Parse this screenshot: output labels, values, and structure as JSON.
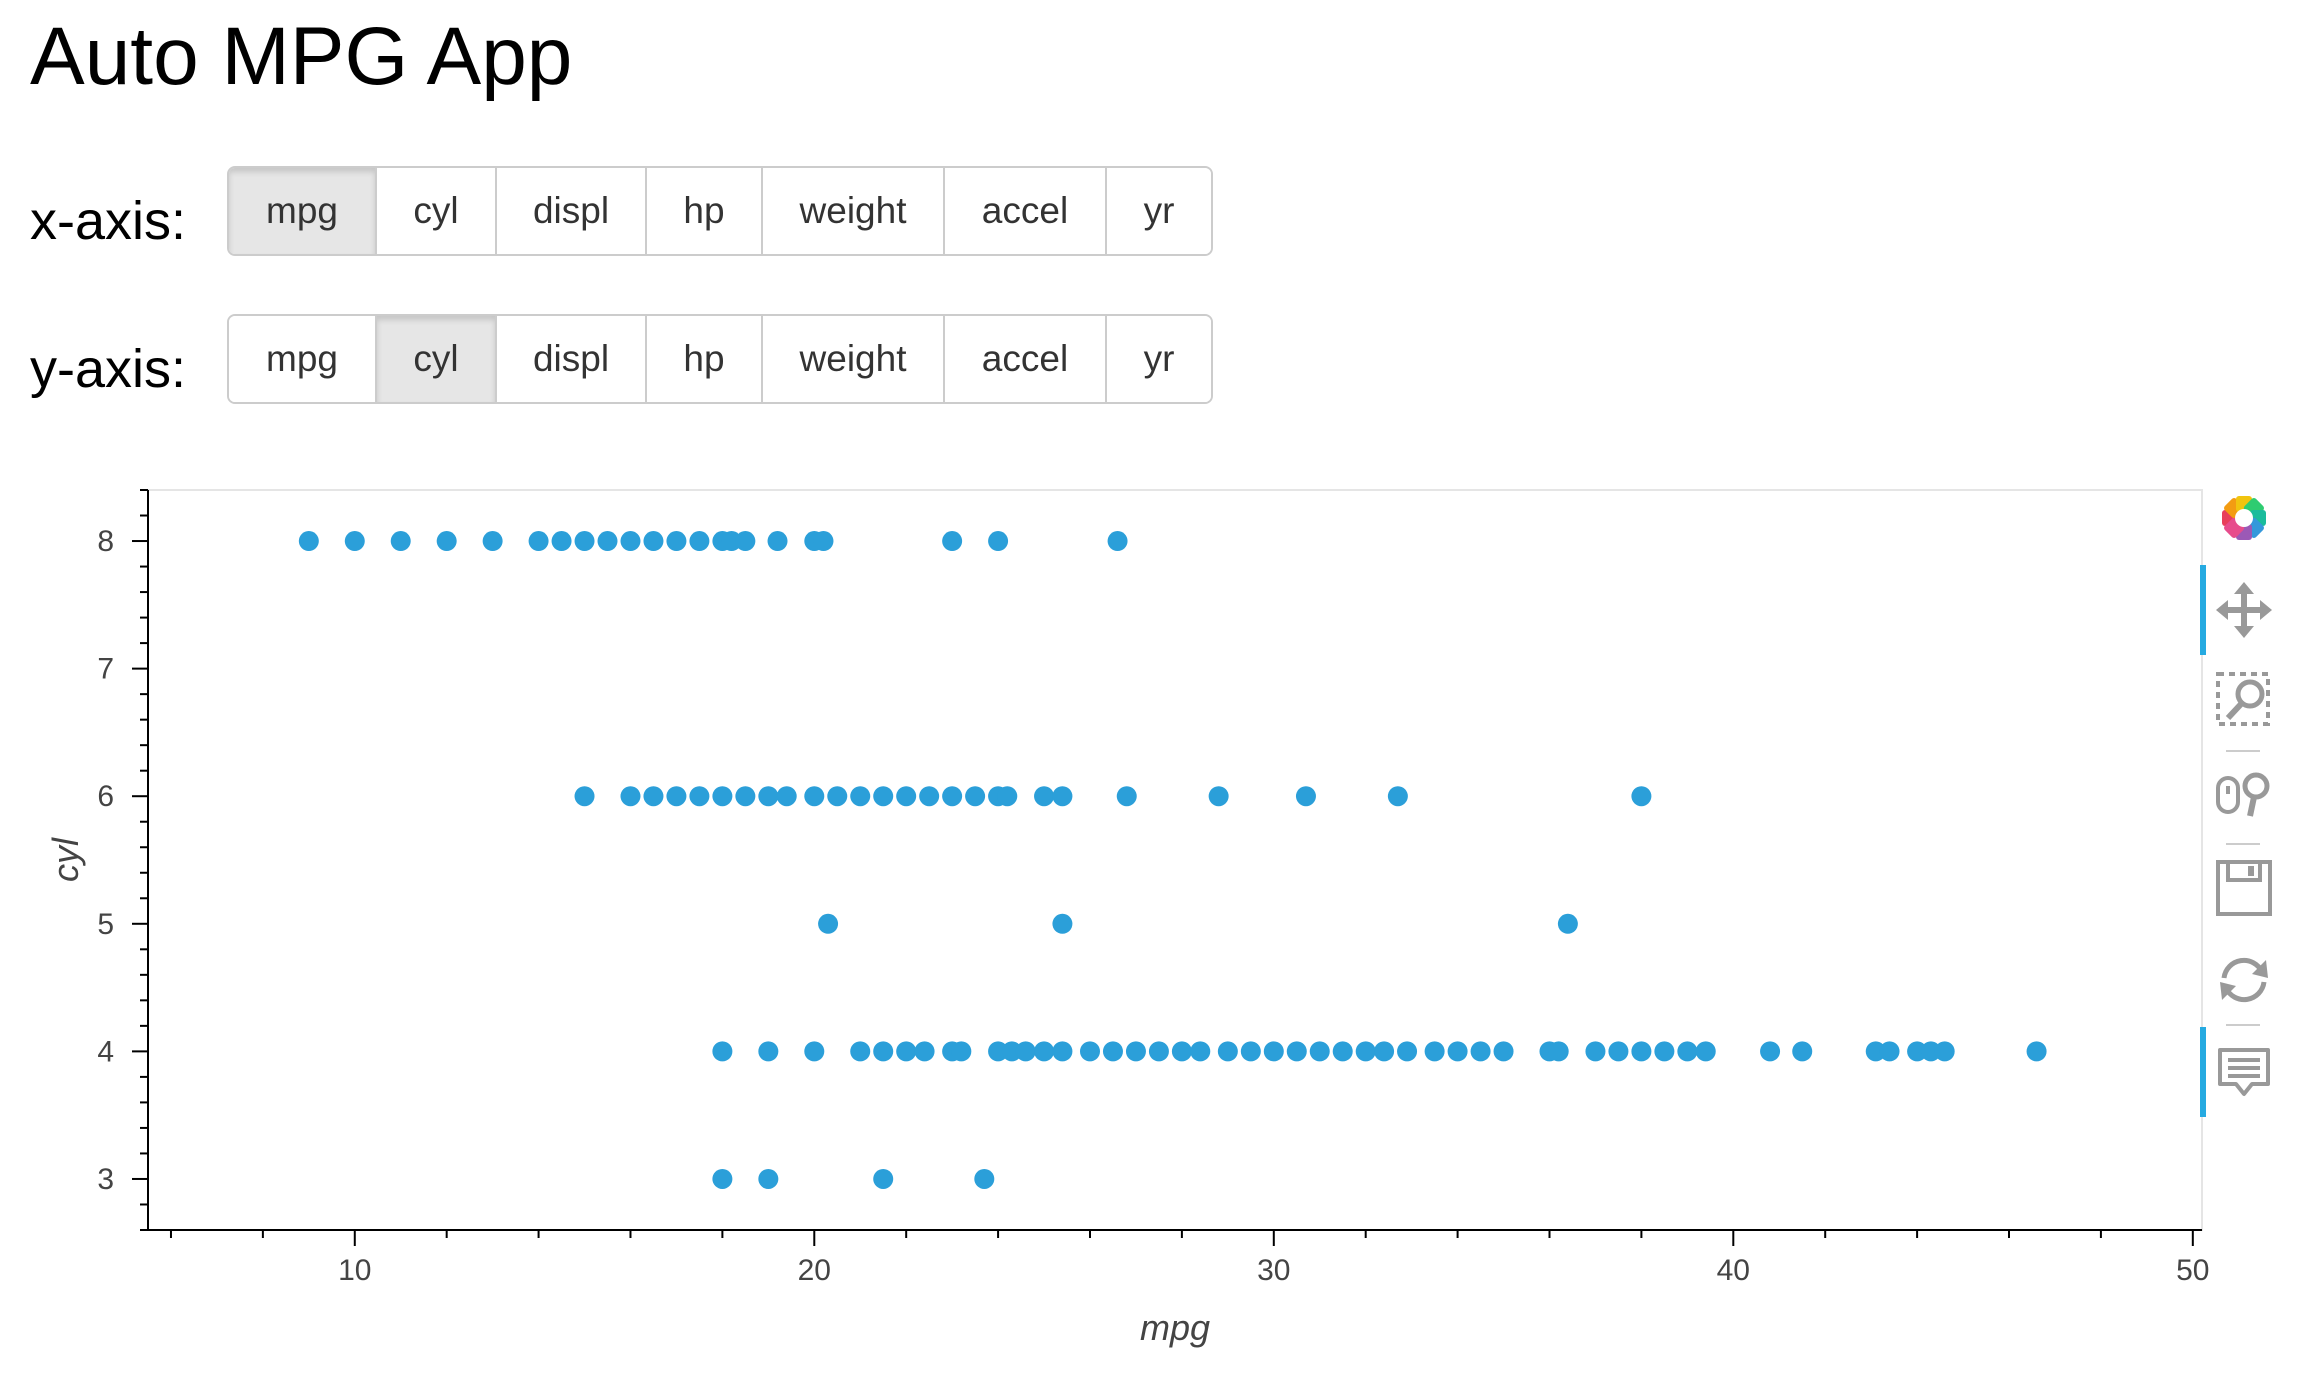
{
  "app": {
    "title": "Auto MPG App"
  },
  "controls": {
    "x_axis_label": "x-axis:",
    "y_axis_label": "y-axis:",
    "options": [
      "mpg",
      "cyl",
      "displ",
      "hp",
      "weight",
      "accel",
      "yr"
    ],
    "x_selected": "mpg",
    "y_selected": "cyl"
  },
  "toolbar": {
    "tools": [
      "bokeh-logo-icon",
      "pan-icon",
      "box-zoom-icon",
      "wheel-zoom-icon",
      "save-icon",
      "reset-icon",
      "hover-icon"
    ],
    "active": [
      "pan-icon",
      "hover-icon"
    ]
  },
  "colors": {
    "point": "#2b9fd9",
    "active_tool": "#26aae1",
    "axis": "#000000"
  },
  "chart_data": {
    "type": "scatter",
    "title": "",
    "xlabel": "mpg",
    "ylabel": "cyl",
    "xlim": [
      5.5,
      50.2
    ],
    "ylim": [
      2.6,
      8.4
    ],
    "x_ticks": [
      10,
      20,
      30,
      40,
      50
    ],
    "y_ticks": [
      3,
      4,
      5,
      6,
      7,
      8
    ],
    "grid": false,
    "series": [
      {
        "y": 8,
        "x": [
          9,
          10,
          11,
          12,
          13,
          14,
          14.5,
          15,
          15.5,
          16,
          16.5,
          17,
          17.5,
          18,
          18.2,
          18.5,
          19.2,
          20,
          20.2,
          23,
          24,
          26.6
        ]
      },
      {
        "y": 6,
        "x": [
          15,
          16,
          16.5,
          17,
          17.5,
          18,
          18.5,
          19,
          19.4,
          20,
          20.5,
          21,
          21.5,
          22,
          22.5,
          23,
          23.5,
          24,
          24.2,
          25,
          25.4,
          26.8,
          28.8,
          30.7,
          32.7,
          38
        ]
      },
      {
        "y": 5,
        "x": [
          20.3,
          25.4,
          36.4
        ]
      },
      {
        "y": 4,
        "x": [
          18,
          19,
          20,
          21,
          21.5,
          22,
          22.4,
          23,
          23.2,
          24,
          24.3,
          24.6,
          25,
          25.4,
          26,
          26.5,
          27,
          27.5,
          28,
          28.4,
          29,
          29.5,
          30,
          30.5,
          31,
          31.5,
          32,
          32.4,
          32.9,
          33.5,
          34,
          34.5,
          35,
          36,
          36.2,
          37,
          37.5,
          38,
          38.5,
          39,
          39.4,
          40.8,
          41.5,
          43.1,
          43.4,
          44,
          44.3,
          44.6,
          46.6
        ]
      },
      {
        "y": 3,
        "x": [
          18,
          19,
          21.5,
          23.7
        ]
      }
    ]
  }
}
